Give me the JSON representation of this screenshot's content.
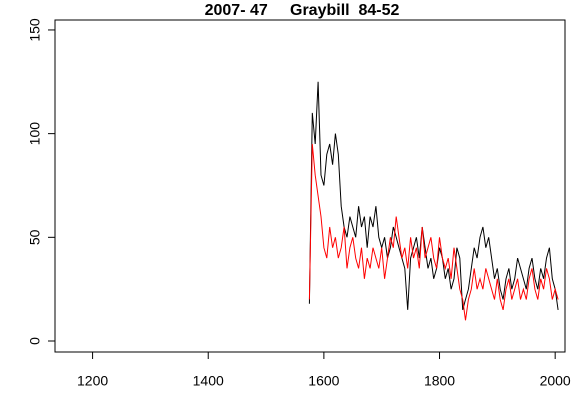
{
  "chart_data": {
    "type": "line",
    "title": "2007- 47     Graybill  84-52",
    "x": [
      1575,
      1580,
      1585,
      1590,
      1595,
      1600,
      1605,
      1610,
      1615,
      1620,
      1625,
      1630,
      1635,
      1640,
      1645,
      1650,
      1655,
      1660,
      1665,
      1670,
      1675,
      1680,
      1685,
      1690,
      1695,
      1700,
      1705,
      1710,
      1715,
      1720,
      1725,
      1730,
      1735,
      1740,
      1745,
      1750,
      1755,
      1760,
      1765,
      1770,
      1775,
      1780,
      1785,
      1790,
      1795,
      1800,
      1805,
      1810,
      1815,
      1820,
      1825,
      1830,
      1835,
      1840,
      1845,
      1850,
      1855,
      1860,
      1865,
      1870,
      1875,
      1880,
      1885,
      1890,
      1895,
      1900,
      1905,
      1910,
      1915,
      1920,
      1925,
      1930,
      1935,
      1940,
      1945,
      1950,
      1955,
      1960,
      1965,
      1970,
      1975,
      1980,
      1985,
      1990,
      1995,
      2000,
      2005
    ],
    "series": [
      {
        "color": "#000000",
        "values": [
          18,
          110,
          95,
          125,
          80,
          75,
          90,
          95,
          85,
          100,
          90,
          65,
          55,
          50,
          60,
          55,
          50,
          65,
          55,
          60,
          45,
          60,
          55,
          65,
          50,
          45,
          50,
          40,
          45,
          55,
          50,
          45,
          40,
          35,
          15,
          40,
          45,
          50,
          40,
          55,
          45,
          35,
          40,
          30,
          35,
          45,
          40,
          30,
          35,
          25,
          30,
          45,
          40,
          15,
          20,
          25,
          35,
          45,
          40,
          50,
          55,
          45,
          50,
          40,
          30,
          35,
          25,
          20,
          30,
          35,
          25,
          30,
          40,
          35,
          30,
          25,
          35,
          40,
          30,
          25,
          35,
          30,
          40,
          45,
          30,
          25,
          15
        ]
      },
      {
        "color": "#ff0000",
        "values": [
          20,
          95,
          80,
          70,
          60,
          45,
          40,
          55,
          45,
          50,
          40,
          45,
          55,
          35,
          45,
          50,
          40,
          35,
          45,
          30,
          40,
          35,
          45,
          40,
          35,
          45,
          30,
          40,
          50,
          45,
          60,
          50,
          40,
          45,
          35,
          50,
          40,
          45,
          35,
          55,
          40,
          45,
          50,
          40,
          35,
          50,
          40,
          35,
          40,
          30,
          45,
          35,
          25,
          20,
          10,
          20,
          25,
          35,
          25,
          30,
          25,
          35,
          30,
          25,
          20,
          30,
          20,
          15,
          25,
          30,
          20,
          25,
          30,
          20,
          25,
          20,
          30,
          35,
          25,
          20,
          30,
          25,
          35,
          30,
          20,
          25,
          20
        ]
      }
    ],
    "xlim": [
      1135,
      2017
    ],
    "ylim": [
      -5.3,
      154.8
    ],
    "xticks": [
      1200,
      1400,
      1600,
      1800,
      2000
    ],
    "yticks": [
      0,
      50,
      100,
      150
    ]
  }
}
